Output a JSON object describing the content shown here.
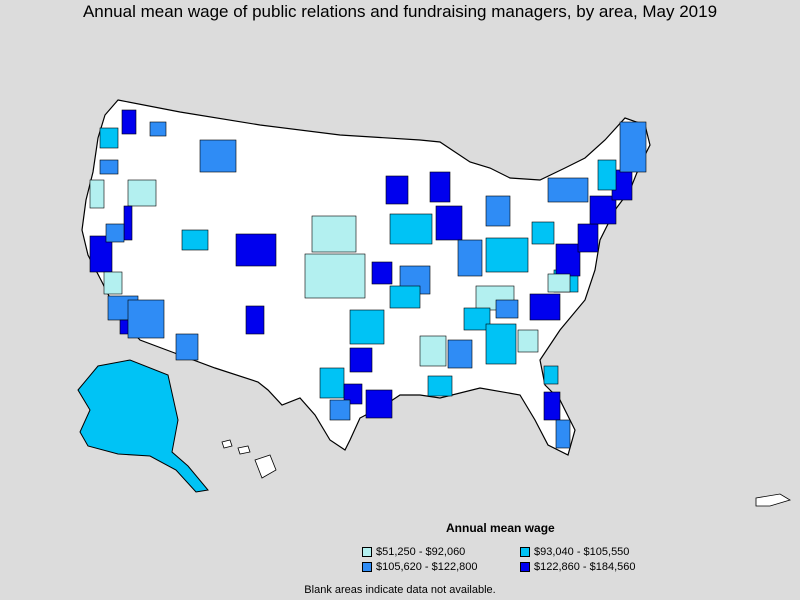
{
  "title": "Annual mean wage of public relations and fundraising managers, by area, May 2019",
  "legend": {
    "title": "Annual mean wage",
    "items": [
      {
        "label": "$51,250 - $92,060",
        "color": "#b3f0f0"
      },
      {
        "label": "$93,040 - $105,550",
        "color": "#00c3f5"
      },
      {
        "label": "$105,620 - $122,800",
        "color": "#2f8cf5"
      },
      {
        "label": "$122,860 - $184,560",
        "color": "#0000ee"
      }
    ]
  },
  "note": "Blank areas indicate data not available.",
  "colors": {
    "background": "#dcdcdc",
    "land": "#ffffff",
    "border": "#000000"
  }
}
